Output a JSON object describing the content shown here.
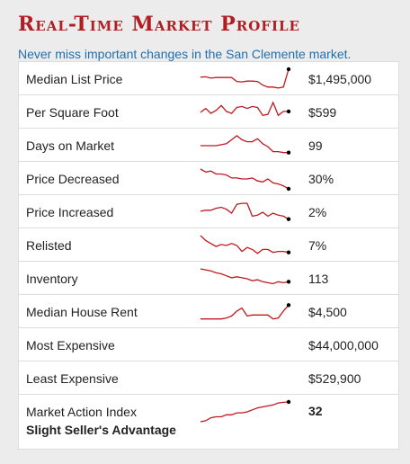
{
  "widget": {
    "title": "Real-Time Market Profile",
    "subtitle": "Never miss important changes in the San Clemente market.",
    "accent_color": "#b01e23",
    "link_color": "#1f6fae"
  },
  "rows": [
    {
      "label": "Median List Price",
      "value": "$1,495,000",
      "spark": [
        0.6,
        0.62,
        0.55,
        0.58,
        0.58,
        0.58,
        0.58,
        0.38,
        0.36,
        0.4,
        0.4,
        0.38,
        0.2,
        0.1,
        0.1,
        0.05,
        0.1,
        1.0
      ]
    },
    {
      "label": "Per Square Foot",
      "value": "$599",
      "spark": [
        0.5,
        0.7,
        0.45,
        0.6,
        0.85,
        0.55,
        0.45,
        0.75,
        0.8,
        0.7,
        0.8,
        0.75,
        0.35,
        0.4,
        1.0,
        0.35,
        0.55,
        0.55
      ]
    },
    {
      "label": "Days on Market",
      "value": "99",
      "spark": [
        0.5,
        0.5,
        0.5,
        0.5,
        0.55,
        0.6,
        0.8,
        1.0,
        0.8,
        0.7,
        0.7,
        0.85,
        0.6,
        0.45,
        0.2,
        0.2,
        0.15,
        0.15
      ]
    },
    {
      "label": "Price Decreased",
      "value": "30%",
      "spark": [
        1.0,
        0.85,
        0.9,
        0.75,
        0.75,
        0.7,
        0.55,
        0.55,
        0.5,
        0.5,
        0.55,
        0.4,
        0.35,
        0.5,
        0.3,
        0.25,
        0.15,
        0.0
      ]
    },
    {
      "label": "Price Increased",
      "value": "2%",
      "spark": [
        0.55,
        0.6,
        0.6,
        0.7,
        0.75,
        0.65,
        0.45,
        0.9,
        0.95,
        0.95,
        0.3,
        0.35,
        0.5,
        0.3,
        0.45,
        0.35,
        0.3,
        0.15
      ]
    },
    {
      "label": "Relisted",
      "value": "7%",
      "spark": [
        1.0,
        0.75,
        0.6,
        0.45,
        0.55,
        0.5,
        0.6,
        0.5,
        0.2,
        0.4,
        0.3,
        0.1,
        0.3,
        0.3,
        0.15,
        0.2,
        0.2,
        0.15
      ]
    },
    {
      "label": "Inventory",
      "value": "113",
      "spark": [
        1.0,
        0.95,
        0.9,
        0.8,
        0.75,
        0.65,
        0.55,
        0.6,
        0.55,
        0.5,
        0.4,
        0.45,
        0.35,
        0.3,
        0.25,
        0.35,
        0.3,
        0.35
      ]
    },
    {
      "label": "Median House Rent",
      "value": "$4,500",
      "spark": [
        0.15,
        0.15,
        0.15,
        0.15,
        0.15,
        0.2,
        0.3,
        0.55,
        0.7,
        0.3,
        0.35,
        0.35,
        0.35,
        0.35,
        0.15,
        0.2,
        0.55,
        0.85
      ]
    },
    {
      "label": "Most Expensive",
      "value": "$44,000,000",
      "spark": null
    },
    {
      "label": "Least Expensive",
      "value": "$529,900",
      "spark": null
    }
  ],
  "mai": {
    "label": "Market Action Index",
    "sublabel": "Slight Seller's Advantage",
    "value": "32",
    "spark": [
      0.0,
      0.05,
      0.2,
      0.25,
      0.25,
      0.35,
      0.35,
      0.45,
      0.45,
      0.5,
      0.6,
      0.7,
      0.75,
      0.8,
      0.85,
      0.95,
      0.98,
      1.0
    ]
  }
}
